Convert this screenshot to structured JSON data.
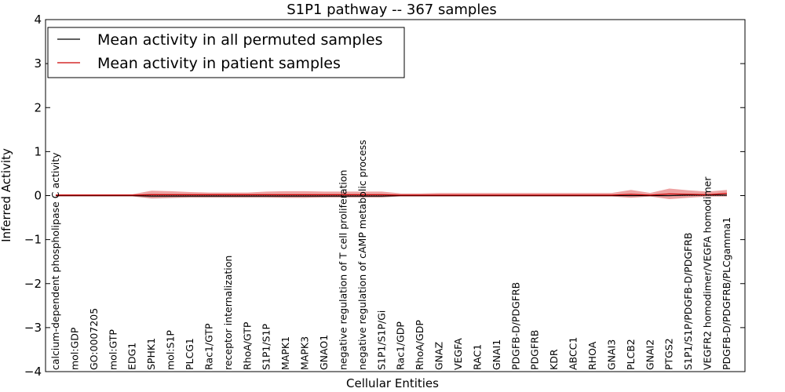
{
  "chart_data": {
    "type": "line",
    "title": "S1P1 pathway -- 367 samples",
    "xlabel": "Cellular Entities",
    "ylabel": "Inferred Activity",
    "ylim": [
      -4,
      4
    ],
    "yticks": [
      "4",
      "3",
      "2",
      "1",
      "0",
      "−1",
      "−2",
      "−3",
      "−4"
    ],
    "legend_position": "top-left",
    "categories": [
      "calcium-dependent phospholipase C activity",
      "mol:GDP",
      "GO:0007205",
      "mol:GTP",
      "EDG1",
      "SPHK1",
      "mol:S1P",
      "PLCG1",
      "Rac1/GTP",
      "receptor internalization",
      "RhoA/GTP",
      "S1P1/S1P",
      "MAPK1",
      "MAPK3",
      "GNAO1",
      "negative regulation of T cell proliferation",
      "negative regulation of cAMP metabolic process",
      "S1P1/S1P/Gi",
      "Rac1/GDP",
      "RhoA/GDP",
      "GNAZ",
      "VEGFA",
      "RAC1",
      "GNAI1",
      "PDGFB-D/PDGFRB",
      "PDGFRB",
      "KDR",
      "ABCC1",
      "RHOA",
      "GNAI3",
      "PLCB2",
      "GNAI2",
      "PTGS2",
      "S1P1/S1P/PDGFB-D/PDGFRB",
      "VEGFR2 homodimer/VEGFA homodimer",
      "PDGFB-D/PDGFRB/PLCgamma1"
    ],
    "series": [
      {
        "name": "Mean activity in all permuted samples",
        "color": "#000000",
        "values": [
          0,
          0,
          0,
          0,
          0,
          -0.01,
          -0.01,
          -0.01,
          -0.01,
          -0.01,
          -0.01,
          -0.01,
          -0.01,
          -0.01,
          -0.01,
          -0.01,
          -0.01,
          -0.01,
          0,
          0,
          0,
          0,
          0,
          0,
          0,
          0,
          0,
          0,
          0,
          0,
          0,
          0,
          0,
          0.01,
          0.01,
          0.01
        ],
        "upper": [
          0.01,
          0.01,
          0.01,
          0.01,
          0.01,
          0.05,
          0.04,
          0.03,
          0.03,
          0.03,
          0.03,
          0.03,
          0.03,
          0.03,
          0.02,
          0.02,
          0.02,
          0.02,
          0.01,
          0.01,
          0.01,
          0.01,
          0.01,
          0.01,
          0.01,
          0.01,
          0.01,
          0.01,
          0.01,
          0.01,
          0.01,
          0.01,
          0.01,
          0.02,
          0.02,
          0.02
        ],
        "lower": [
          -0.01,
          -0.01,
          -0.01,
          -0.01,
          -0.01,
          -0.07,
          -0.06,
          -0.05,
          -0.05,
          -0.05,
          -0.05,
          -0.05,
          -0.05,
          -0.05,
          -0.04,
          -0.04,
          -0.04,
          -0.04,
          -0.02,
          -0.02,
          -0.02,
          -0.02,
          -0.02,
          -0.02,
          -0.02,
          -0.02,
          -0.02,
          -0.02,
          -0.02,
          -0.02,
          -0.02,
          -0.02,
          -0.02,
          -0.01,
          -0.01,
          -0.01
        ]
      },
      {
        "name": "Mean activity in patient samples",
        "color": "#cc0000",
        "values": [
          0.01,
          0.01,
          0.01,
          0.01,
          0.01,
          0.02,
          0.02,
          0.02,
          0.02,
          0.02,
          0.02,
          0.02,
          0.02,
          0.02,
          0.02,
          0.02,
          0.02,
          0.02,
          0.01,
          0.01,
          0.01,
          0.01,
          0.01,
          0.01,
          0.01,
          0.01,
          0.01,
          0.01,
          0.01,
          0.01,
          0.03,
          0.01,
          0.04,
          0.03,
          0.02,
          0.05
        ],
        "upper": [
          0.03,
          0.03,
          0.03,
          0.03,
          0.03,
          0.11,
          0.1,
          0.08,
          0.07,
          0.07,
          0.07,
          0.09,
          0.1,
          0.1,
          0.09,
          0.09,
          0.09,
          0.09,
          0.05,
          0.05,
          0.06,
          0.06,
          0.06,
          0.06,
          0.06,
          0.06,
          0.06,
          0.06,
          0.06,
          0.06,
          0.13,
          0.06,
          0.16,
          0.12,
          0.09,
          0.13
        ],
        "lower": [
          -0.02,
          -0.02,
          -0.02,
          -0.02,
          -0.02,
          -0.06,
          -0.05,
          -0.04,
          -0.04,
          -0.04,
          -0.04,
          -0.04,
          -0.05,
          -0.05,
          -0.04,
          -0.04,
          -0.04,
          -0.04,
          -0.02,
          -0.02,
          -0.02,
          -0.02,
          -0.02,
          -0.02,
          -0.02,
          -0.02,
          -0.02,
          -0.02,
          -0.02,
          -0.02,
          -0.05,
          -0.02,
          -0.08,
          -0.05,
          -0.02,
          -0.02
        ]
      }
    ]
  }
}
